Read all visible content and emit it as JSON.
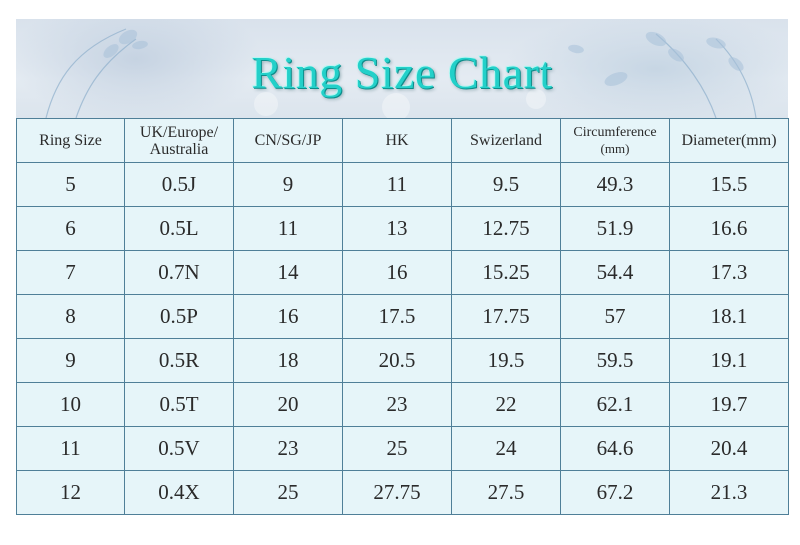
{
  "title": "Ring Size Chart",
  "colors": {
    "title": "#23d0c9",
    "cell_bg": "#e6f5f9",
    "border": "#4f7f98"
  },
  "table": {
    "headers": [
      {
        "line1": "Ring Size",
        "line2": ""
      },
      {
        "line1": "UK/Europe/",
        "line2": "Australia"
      },
      {
        "line1": "CN/SG/JP",
        "line2": ""
      },
      {
        "line1": "HK",
        "line2": ""
      },
      {
        "line1": "Swizerland",
        "line2": ""
      },
      {
        "line1": "Circumference",
        "line2": "(mm)"
      },
      {
        "line1": "Diameter(mm)",
        "line2": ""
      }
    ],
    "rows": [
      [
        "5",
        "0.5J",
        "9",
        "11",
        "9.5",
        "49.3",
        "15.5"
      ],
      [
        "6",
        "0.5L",
        "11",
        "13",
        "12.75",
        "51.9",
        "16.6"
      ],
      [
        "7",
        "0.7N",
        "14",
        "16",
        "15.25",
        "54.4",
        "17.3"
      ],
      [
        "8",
        "0.5P",
        "16",
        "17.5",
        "17.75",
        "57",
        "18.1"
      ],
      [
        "9",
        "0.5R",
        "18",
        "20.5",
        "19.5",
        "59.5",
        "19.1"
      ],
      [
        "10",
        "0.5T",
        "20",
        "23",
        "22",
        "62.1",
        "19.7"
      ],
      [
        "11",
        "0.5V",
        "23",
        "25",
        "24",
        "64.6",
        "20.4"
      ],
      [
        "12",
        "0.4X",
        "25",
        "27.75",
        "27.5",
        "67.2",
        "21.3"
      ]
    ]
  }
}
